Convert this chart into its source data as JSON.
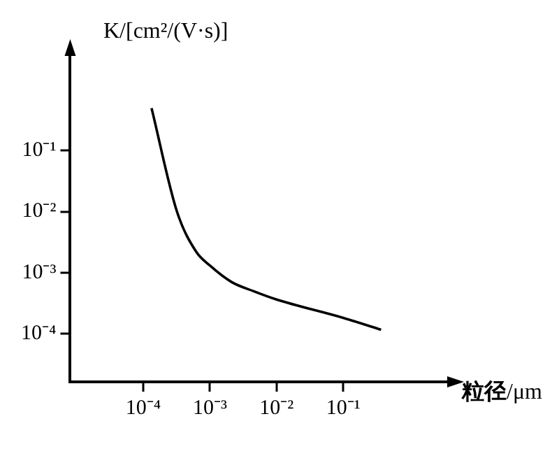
{
  "chart_data": {
    "type": "line",
    "xlabel": "粒径/μm",
    "ylabel": "K/[cm²/(V·s)]",
    "log": "xy",
    "grid": false,
    "legend": false,
    "marker": "none",
    "line_style": "solid",
    "x": [
      0.000133,
      0.00032,
      0.00062,
      0.001,
      0.0021,
      0.0046,
      0.01,
      0.1,
      0.37
    ],
    "series": [
      {
        "color": "#000000",
        "values": [
          0.5,
          0.01,
          0.0022,
          0.0013,
          0.0007,
          0.00049,
          0.00036,
          0.00018,
          0.000115
        ]
      }
    ],
    "xlim": [
      8e-06,
      4
    ],
    "ylim": [
      1.6e-05,
      4
    ],
    "xticks": [
      {
        "value": 0.0001,
        "label": "10⁻⁴"
      },
      {
        "value": 0.001,
        "label": "10⁻³"
      },
      {
        "value": 0.01,
        "label": "10⁻²"
      },
      {
        "value": 0.1,
        "label": "10⁻¹"
      }
    ],
    "yticks": [
      {
        "value": 0.0001,
        "label": "10⁻⁴"
      },
      {
        "value": 0.001,
        "label": "10⁻³"
      },
      {
        "value": 0.01,
        "label": "10⁻²"
      },
      {
        "value": 0.1,
        "label": "10⁻¹"
      }
    ]
  }
}
